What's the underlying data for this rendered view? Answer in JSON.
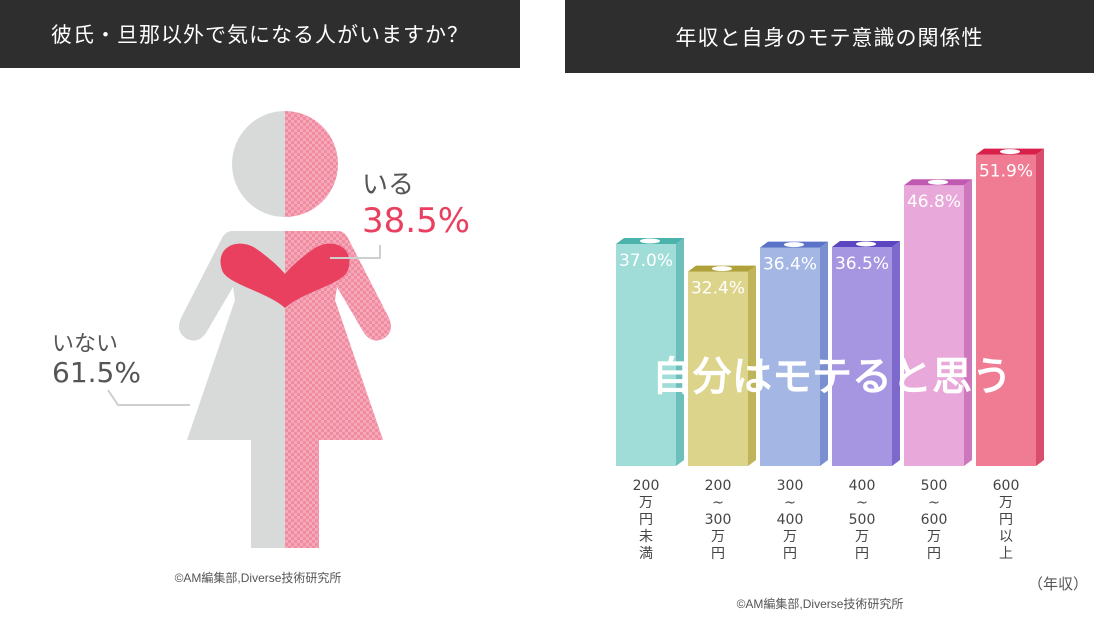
{
  "left_chart": {
    "title": "彼氏・旦那以外で気になる人がいますか？",
    "yes_label": "いる",
    "yes_value": "38.5%",
    "no_label": "いない",
    "no_value": "61.5%",
    "credit": "©AM編集部,Diverse技術研究所"
  },
  "chart_data": [
    {
      "type": "pie",
      "title": "彼氏・旦那以外で気になる人がいますか？",
      "categories": [
        "いる",
        "いない"
      ],
      "values": [
        38.5,
        61.5
      ],
      "unit": "%"
    },
    {
      "type": "bar",
      "title": "年収と自身のモテ意識の関係性",
      "ylabel": "自分はモテると思う",
      "xlabel": "（年収）",
      "categories": [
        [
          "200",
          "万",
          "円",
          "未",
          "満"
        ],
        [
          "200",
          "~",
          "300",
          "万",
          "円"
        ],
        [
          "300",
          "~",
          "400",
          "万",
          "円"
        ],
        [
          "400",
          "~",
          "500",
          "万",
          "円"
        ],
        [
          "500",
          "~",
          "600",
          "万",
          "円"
        ],
        [
          "600",
          "万",
          "円",
          "以",
          "上"
        ]
      ],
      "values": [
        37.0,
        32.4,
        36.4,
        36.5,
        46.8,
        51.9
      ],
      "labels": [
        "37.0%",
        "32.4%",
        "36.4%",
        "36.5%",
        "46.8%",
        "51.9%"
      ],
      "colors": [
        "#a0dcd8",
        "#ddd48c",
        "#a3b6e4",
        "#a696e2",
        "#e8a8da",
        "#f07c94"
      ],
      "side_colors": [
        "#6cbfba",
        "#bfb45a",
        "#7a8fd0",
        "#7d68cc",
        "#cd78bd",
        "#d84e6c"
      ],
      "top_colors": [
        "#4cb2ac",
        "#b0a238",
        "#5a72c8",
        "#5c46c0",
        "#c05ab0",
        "#d8204a"
      ],
      "credit": "©AM編集部,Diverse技術研究所"
    }
  ]
}
